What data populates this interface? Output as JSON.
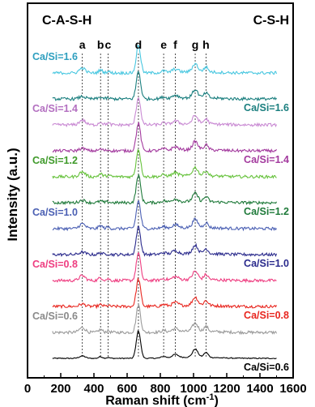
{
  "chart_data": {
    "type": "line",
    "xlabel": "Raman shift (cm",
    "xlabel_sup": "-1",
    "xlabel_close": ")",
    "ylabel": "Intensity (a.u.)",
    "xlim": [
      0,
      1600
    ],
    "xticks": [
      0,
      200,
      400,
      600,
      800,
      1000,
      1200,
      1400,
      1600
    ],
    "y_ticks_shown": false,
    "grid": false,
    "corner_labels": {
      "left": "C-A-S-H",
      "right": "C-S-H"
    },
    "peaks": [
      {
        "letter": "a",
        "x": 330
      },
      {
        "letter": "b",
        "x": 440
      },
      {
        "letter": "c",
        "x": 485
      },
      {
        "letter": "d",
        "x": 668
      },
      {
        "letter": "e",
        "x": 820
      },
      {
        "letter": "f",
        "x": 890
      },
      {
        "letter": "g",
        "x": 1010
      },
      {
        "letter": "h",
        "x": 1075
      }
    ],
    "series": [
      {
        "name": "Ca/Si=0.6",
        "group": "C-S-H",
        "color": "#000000",
        "label_color": "#000000"
      },
      {
        "name": "Ca/Si=0.6",
        "group": "C-A-S-H",
        "color": "#9a9a9a",
        "label_color": "#8a8a8a"
      },
      {
        "name": "Ca/Si=0.8",
        "group": "C-S-H",
        "color": "#e8261f",
        "label_color": "#e8261f"
      },
      {
        "name": "Ca/Si=0.8",
        "group": "C-A-S-H",
        "color": "#ee3d80",
        "label_color": "#ee3d80"
      },
      {
        "name": "Ca/Si=1.0",
        "group": "C-S-H",
        "color": "#2a2a8c",
        "label_color": "#2a2a8c"
      },
      {
        "name": "Ca/Si=1.0",
        "group": "C-A-S-H",
        "color": "#4a5fb3",
        "label_color": "#4a5fb3"
      },
      {
        "name": "Ca/Si=1.2",
        "group": "C-S-H",
        "color": "#1f7a3a",
        "label_color": "#1f7a3a"
      },
      {
        "name": "Ca/Si=1.2",
        "group": "C-A-S-H",
        "color": "#66c23b",
        "label_color": "#3f9a2a"
      },
      {
        "name": "Ca/Si=1.4",
        "group": "C-S-H",
        "color": "#a33a9e",
        "label_color": "#a33a9e"
      },
      {
        "name": "Ca/Si=1.4",
        "group": "C-A-S-H",
        "color": "#c98ad3",
        "label_color": "#b36fc0"
      },
      {
        "name": "Ca/Si=1.6",
        "group": "C-S-H",
        "color": "#1b7f7f",
        "label_color": "#1b7f7f"
      },
      {
        "name": "Ca/Si=1.6",
        "group": "C-A-S-H",
        "color": "#48c7e0",
        "label_color": "#2e9fbf"
      }
    ]
  }
}
